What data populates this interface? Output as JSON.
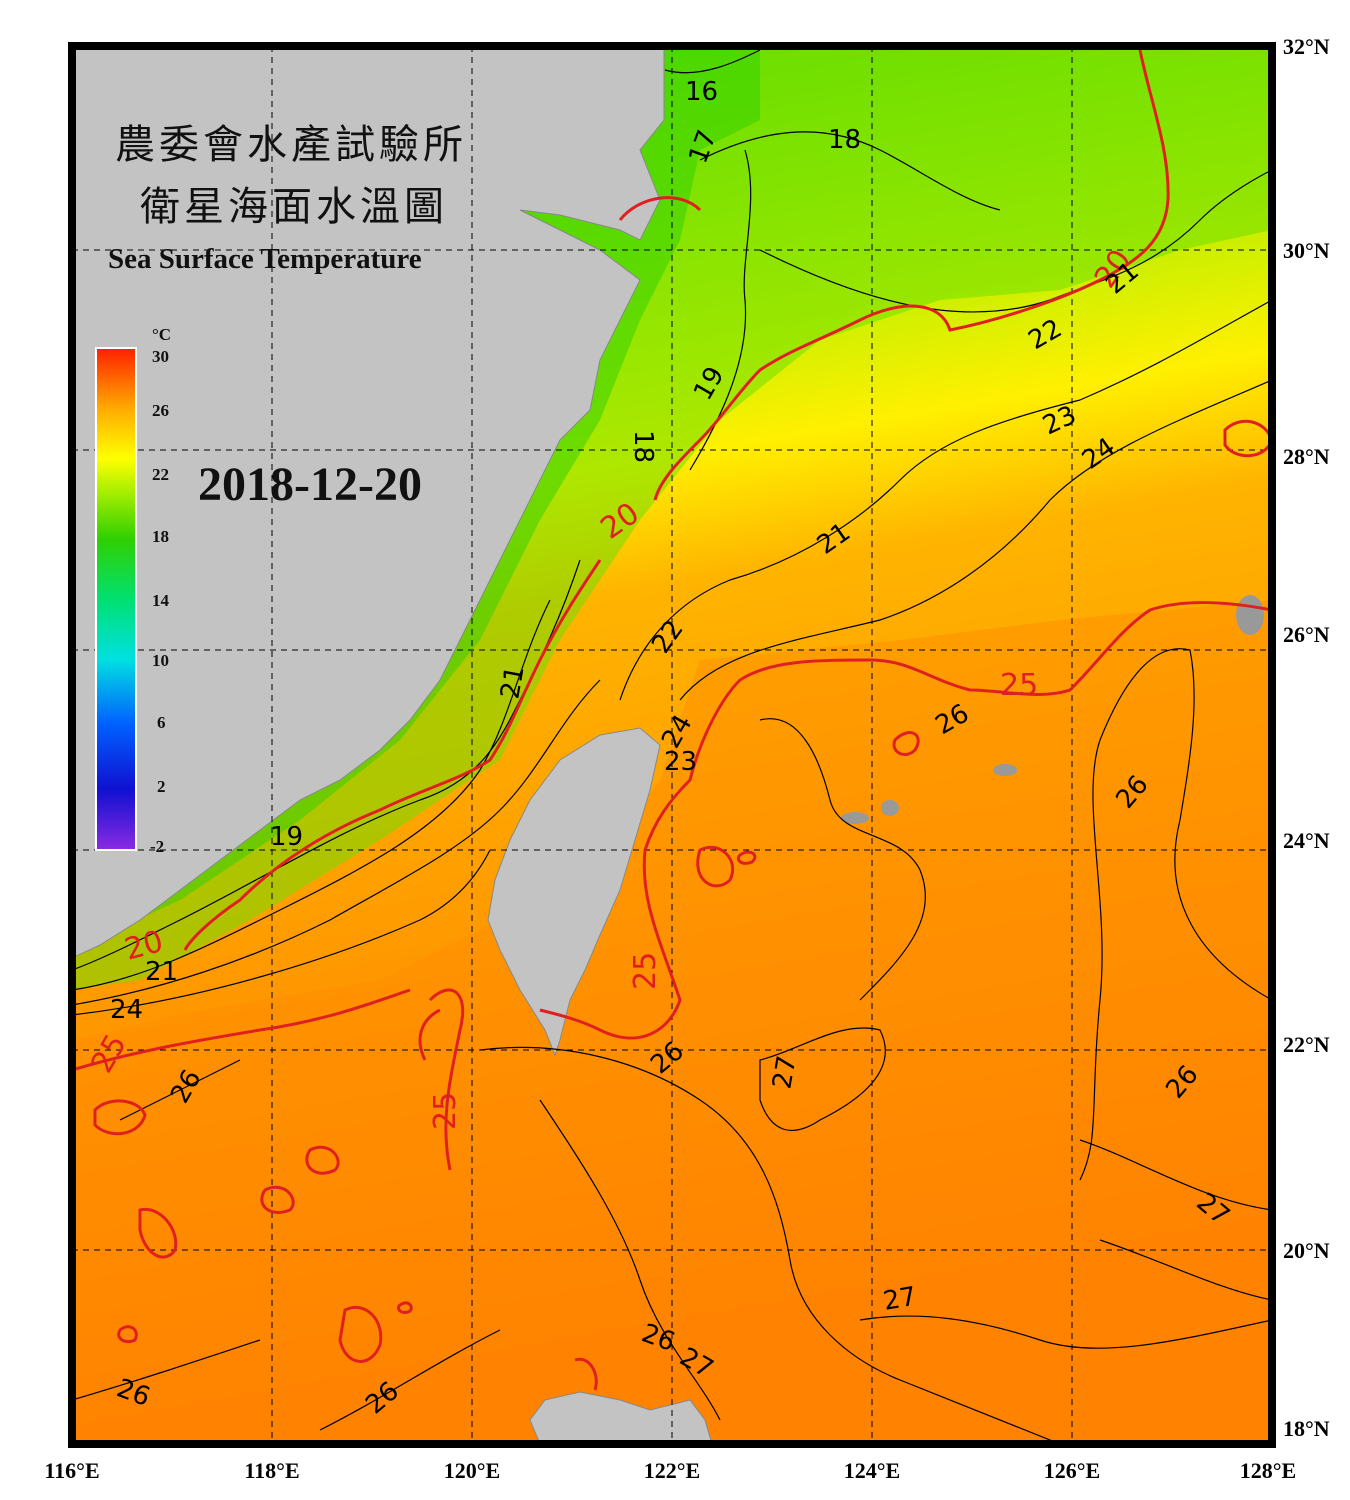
{
  "title_zh_line1": "農委會水產試驗所",
  "title_zh_line2": "衛星海面水溫圖",
  "title_en": "Sea Surface Temperature",
  "date": "2018-12-20",
  "colorbar": {
    "unit": "°C",
    "ticks": [
      "30",
      "26",
      "22",
      "18",
      "14",
      "10",
      "6",
      "2",
      "-2"
    ],
    "range": [
      -2,
      30
    ]
  },
  "axes": {
    "lon_labels": [
      "116°E",
      "118°E",
      "120°E",
      "122°E",
      "124°E",
      "126°E",
      "128°E"
    ],
    "lat_labels": [
      "32°N",
      "30°N",
      "28°N",
      "26°N",
      "24°N",
      "22°N",
      "20°N",
      "18°N"
    ],
    "lon_range": [
      116,
      128
    ],
    "lat_range": [
      18,
      32
    ],
    "grid": "dashed"
  },
  "contour_labels": [
    "16",
    "17",
    "18",
    "19",
    "18",
    "20",
    "21",
    "22",
    "23",
    "24",
    "25",
    "26",
    "27",
    "20",
    "21",
    "22",
    "23",
    "24",
    "25",
    "26",
    "27",
    "19",
    "25",
    "26",
    "26",
    "27",
    "26",
    "27",
    "26",
    "27",
    "26"
  ],
  "colors": {
    "land": "#c3c3c3",
    "contour_major": "#e02020",
    "contour_minor": "#000000"
  }
}
